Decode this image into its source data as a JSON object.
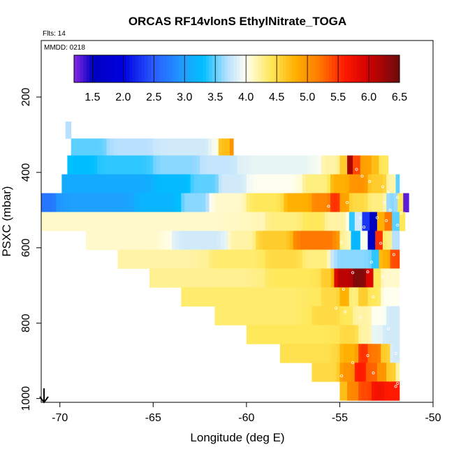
{
  "chart_data": {
    "type": "heatmap",
    "title": "ORCAS RF14vlonS EthylNitrate_TOGA",
    "flights_label": "Flts: 14",
    "date_label": "MMDD: 0218",
    "xlabel": "Longitude (deg E)",
    "ylabel": "PSXC (mbar)",
    "xlim": [
      -71,
      -50
    ],
    "ylim": [
      1010,
      50
    ],
    "x_ticks": [
      -70,
      -65,
      -60,
      -55,
      -50
    ],
    "x_tick_labels": [
      "-70",
      "-65",
      "-60",
      "-55",
      "-50"
    ],
    "y_ticks": [
      200,
      400,
      600,
      800,
      1000
    ],
    "y_tick_labels": [
      "200",
      "400",
      "600",
      "800",
      "1000"
    ],
    "colorbar": {
      "min": 1.2,
      "max": 6.5,
      "ticks": [
        1.5,
        2.0,
        2.5,
        3.0,
        3.5,
        4.0,
        4.5,
        5.0,
        5.5,
        6.0,
        6.5
      ],
      "tick_labels": [
        "1.5",
        "2.0",
        "2.5",
        "3.0",
        "3.5",
        "4.0",
        "4.5",
        "5.0",
        "5.5",
        "6.0",
        "6.5"
      ],
      "stops": [
        [
          1.2,
          "#8a2be2"
        ],
        [
          1.5,
          "#0000c0"
        ],
        [
          2.0,
          "#0000e0"
        ],
        [
          2.5,
          "#2a5cff"
        ],
        [
          3.0,
          "#1ea0ff"
        ],
        [
          3.3,
          "#00bfff"
        ],
        [
          3.7,
          "#b8e0ff"
        ],
        [
          4.0,
          "#fffff0"
        ],
        [
          4.4,
          "#ffe85a"
        ],
        [
          4.8,
          "#ffb000"
        ],
        [
          5.2,
          "#ff7800"
        ],
        [
          5.6,
          "#ff1a00"
        ],
        [
          6.0,
          "#d00000"
        ],
        [
          6.5,
          "#6b0c0c"
        ]
      ]
    },
    "layers": [
      {
        "p0": 265,
        "p1": 310,
        "segments": [
          [
            -69.7,
            -69.4,
            3.7
          ]
        ]
      },
      {
        "p0": 310,
        "p1": 355,
        "segments": [
          [
            -69.4,
            -67.5,
            3.5
          ],
          [
            -67.5,
            -65.0,
            3.7
          ],
          [
            -65.0,
            -61.5,
            3.8
          ],
          [
            -61.5,
            -60.9,
            4.7
          ],
          [
            -60.9,
            -60.7,
            5.0
          ]
        ]
      },
      {
        "p0": 355,
        "p1": 405,
        "segments": [
          [
            -69.6,
            -68.0,
            3.3
          ],
          [
            -68.0,
            -65.0,
            3.4
          ],
          [
            -65.0,
            -62.5,
            3.6
          ],
          [
            -62.5,
            -60.5,
            3.75
          ],
          [
            -60.5,
            -56.0,
            3.9
          ],
          [
            -56.0,
            -55.0,
            4.2
          ],
          [
            -55.0,
            -54.6,
            4.6
          ],
          [
            -54.6,
            -54.3,
            6.2
          ],
          [
            -54.3,
            -53.9,
            5.4
          ],
          [
            -53.9,
            -53.3,
            4.9
          ],
          [
            -53.3,
            -52.9,
            4.7
          ],
          [
            -52.9,
            -52.4,
            4.4
          ]
        ]
      },
      {
        "p0": 405,
        "p1": 455,
        "segments": [
          [
            -69.9,
            -65.0,
            3.1
          ],
          [
            -65.0,
            -63.0,
            3.25
          ],
          [
            -63.0,
            -61.5,
            3.5
          ],
          [
            -61.5,
            -60.0,
            3.8
          ],
          [
            -60.0,
            -57.0,
            4.0
          ],
          [
            -57.0,
            -55.5,
            4.3
          ],
          [
            -55.5,
            -54.5,
            4.8
          ],
          [
            -54.5,
            -53.5,
            5.0
          ],
          [
            -53.5,
            -52.5,
            4.6
          ],
          [
            -52.5,
            -52.0,
            4.2
          ],
          [
            -52.0,
            -51.8,
            3.5
          ]
        ]
      },
      {
        "p0": 455,
        "p1": 505,
        "segments": [
          [
            -71.0,
            -70.2,
            2.7
          ],
          [
            -70.2,
            -66.0,
            3.0
          ],
          [
            -66.0,
            -63.5,
            3.2
          ],
          [
            -63.5,
            -62.0,
            3.6
          ],
          [
            -62.0,
            -60.0,
            4.1
          ],
          [
            -60.0,
            -58.0,
            4.4
          ],
          [
            -58.0,
            -56.5,
            4.8
          ],
          [
            -56.5,
            -55.5,
            5.1
          ],
          [
            -55.5,
            -55.0,
            5.5
          ],
          [
            -55.0,
            -54.5,
            4.9
          ],
          [
            -54.5,
            -53.5,
            4.5
          ],
          [
            -53.5,
            -52.5,
            4.3
          ],
          [
            -52.5,
            -51.9,
            3.6
          ],
          [
            -51.9,
            -51.6,
            4.4
          ],
          [
            -51.6,
            -51.3,
            1.3
          ]
        ]
      },
      {
        "p0": 505,
        "p1": 555,
        "segments": [
          [
            -71.0,
            -59.0,
            4.1
          ],
          [
            -59.0,
            -57.0,
            4.3
          ],
          [
            -57.0,
            -55.8,
            4.4
          ],
          [
            -55.8,
            -54.5,
            4.2
          ],
          [
            -54.5,
            -54.2,
            3.4
          ],
          [
            -54.2,
            -53.8,
            3.8
          ],
          [
            -53.8,
            -53.4,
            2.3
          ],
          [
            -53.4,
            -53.0,
            1.5
          ],
          [
            -53.0,
            -52.6,
            4.8
          ],
          [
            -52.6,
            -52.2,
            5.2
          ],
          [
            -52.2,
            -51.8,
            3.5
          ],
          [
            -51.8,
            -51.5,
            4.4
          ]
        ]
      },
      {
        "p0": 555,
        "p1": 605,
        "segments": [
          [
            -68.6,
            -64.0,
            4.1
          ],
          [
            -64.0,
            -61.0,
            3.8
          ],
          [
            -61.0,
            -59.5,
            4.2
          ],
          [
            -59.5,
            -57.5,
            4.6
          ],
          [
            -57.5,
            -55.0,
            5.2
          ],
          [
            -55.0,
            -54.4,
            4.2
          ],
          [
            -54.4,
            -53.9,
            3.2
          ],
          [
            -53.9,
            -53.5,
            4.0
          ],
          [
            -53.5,
            -53.1,
            1.5
          ],
          [
            -53.1,
            -52.7,
            5.5
          ],
          [
            -52.7,
            -52.2,
            4.3
          ],
          [
            -52.2,
            -51.8,
            3.7
          ]
        ]
      },
      {
        "p0": 605,
        "p1": 655,
        "segments": [
          [
            -66.9,
            -62.0,
            4.2
          ],
          [
            -62.0,
            -59.0,
            4.35
          ],
          [
            -59.0,
            -57.0,
            4.5
          ],
          [
            -57.0,
            -55.5,
            4.3
          ],
          [
            -55.5,
            -53.3,
            3.6
          ],
          [
            -53.3,
            -52.9,
            3.4
          ],
          [
            -52.9,
            -52.3,
            4.8
          ],
          [
            -52.3,
            -51.8,
            5.4
          ]
        ]
      },
      {
        "p0": 655,
        "p1": 705,
        "segments": [
          [
            -65.2,
            -59.0,
            4.25
          ],
          [
            -59.0,
            -56.0,
            4.4
          ],
          [
            -56.0,
            -55.3,
            4.6
          ],
          [
            -55.3,
            -54.3,
            6.1
          ],
          [
            -54.3,
            -53.6,
            6.4
          ],
          [
            -53.6,
            -53.2,
            5.9
          ],
          [
            -53.2,
            -52.8,
            4.4
          ],
          [
            -52.8,
            -51.8,
            4.1
          ]
        ]
      },
      {
        "p0": 705,
        "p1": 755,
        "segments": [
          [
            -63.5,
            -56.0,
            4.35
          ],
          [
            -56.0,
            -55.0,
            4.5
          ],
          [
            -55.0,
            -54.5,
            4.8
          ],
          [
            -54.5,
            -54.0,
            4.3
          ],
          [
            -54.0,
            -53.5,
            4.6
          ],
          [
            -53.5,
            -52.8,
            4.4
          ],
          [
            -52.8,
            -51.8,
            4.0
          ]
        ]
      },
      {
        "p0": 755,
        "p1": 805,
        "segments": [
          [
            -61.7,
            -56.5,
            4.35
          ],
          [
            -56.5,
            -55.0,
            4.5
          ],
          [
            -55.0,
            -54.3,
            4.4
          ],
          [
            -54.3,
            -53.3,
            4.2
          ],
          [
            -53.3,
            -52.5,
            4.0
          ],
          [
            -52.5,
            -51.8,
            3.8
          ]
        ]
      },
      {
        "p0": 805,
        "p1": 855,
        "segments": [
          [
            -60.0,
            -55.0,
            4.4
          ],
          [
            -55.0,
            -54.0,
            4.5
          ],
          [
            -54.0,
            -53.3,
            4.2
          ],
          [
            -53.3,
            -52.7,
            3.9
          ],
          [
            -52.7,
            -51.8,
            3.8
          ]
        ]
      },
      {
        "p0": 855,
        "p1": 905,
        "segments": [
          [
            -58.2,
            -55.0,
            4.45
          ],
          [
            -55.0,
            -54.0,
            4.8
          ],
          [
            -54.0,
            -53.5,
            5.5
          ],
          [
            -53.5,
            -52.8,
            5.2
          ],
          [
            -52.8,
            -52.3,
            4.6
          ],
          [
            -52.3,
            -51.8,
            3.8
          ]
        ]
      },
      {
        "p0": 905,
        "p1": 955,
        "segments": [
          [
            -56.5,
            -55.0,
            4.5
          ],
          [
            -55.0,
            -54.2,
            5.0
          ],
          [
            -54.2,
            -53.6,
            5.6
          ],
          [
            -53.6,
            -53.0,
            5.3
          ],
          [
            -53.0,
            -52.5,
            5.0
          ],
          [
            -52.5,
            -52.0,
            4.6
          ],
          [
            -52.0,
            -51.8,
            4.2
          ]
        ]
      },
      {
        "p0": 955,
        "p1": 1005,
        "segments": [
          [
            -55.0,
            -54.6,
            4.7
          ],
          [
            -54.6,
            -54.0,
            5.1
          ],
          [
            -54.0,
            -53.3,
            5.4
          ],
          [
            -53.3,
            -52.6,
            5.7
          ],
          [
            -52.6,
            -51.8,
            5.6
          ]
        ]
      }
    ],
    "sample_points": [
      [
        -54.1,
        392
      ],
      [
        -53.8,
        410
      ],
      [
        -53.4,
        424
      ],
      [
        -52.7,
        438
      ],
      [
        -52.4,
        452
      ],
      [
        -54.6,
        480
      ],
      [
        -52.6,
        480
      ],
      [
        -51.9,
        466
      ],
      [
        -55.6,
        490
      ],
      [
        -52.3,
        500
      ],
      [
        -51.7,
        508
      ],
      [
        -53.9,
        520
      ],
      [
        -53.0,
        520
      ],
      [
        -52.5,
        528
      ],
      [
        -53.7,
        545
      ],
      [
        -51.9,
        540
      ],
      [
        -54.9,
        585
      ],
      [
        -53.6,
        578
      ],
      [
        -52.8,
        588
      ],
      [
        -52.1,
        618
      ],
      [
        -53.3,
        638
      ],
      [
        -54.3,
        666
      ],
      [
        -53.5,
        664
      ],
      [
        -52.7,
        676
      ],
      [
        -54.8,
        710
      ],
      [
        -53.2,
        730
      ],
      [
        -52.6,
        724
      ],
      [
        -55.2,
        760
      ],
      [
        -54.7,
        770
      ],
      [
        -53.9,
        785
      ],
      [
        -52.4,
        815
      ],
      [
        -52.0,
        880
      ],
      [
        -53.5,
        886
      ],
      [
        -54.3,
        905
      ],
      [
        -53.2,
        932
      ],
      [
        -54.9,
        940
      ],
      [
        -52.0,
        968
      ],
      [
        -51.9,
        960
      ]
    ]
  }
}
